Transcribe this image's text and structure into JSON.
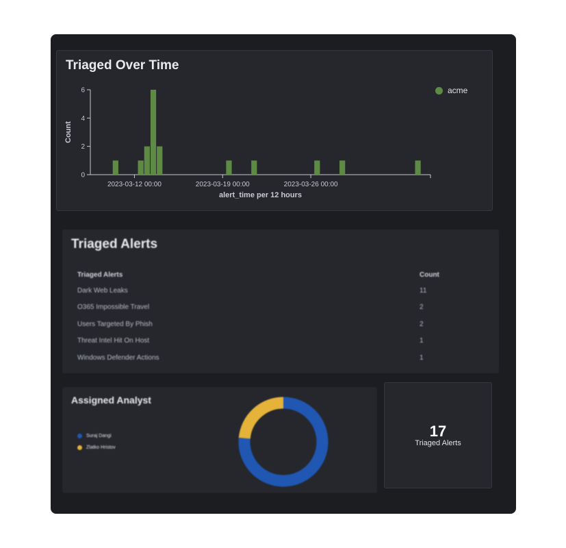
{
  "panels": {
    "time": {
      "title": "Triaged Over Time",
      "legend": [
        {
          "label": "acme",
          "color": "#5f8a45"
        }
      ]
    },
    "alerts": {
      "title": "Triaged Alerts",
      "columns": [
        "Triaged Alerts",
        "Count"
      ],
      "rows": [
        {
          "name": "Dark Web Leaks",
          "count": "11"
        },
        {
          "name": "O365 Impossible Travel",
          "count": "2"
        },
        {
          "name": "Users Targeted By Phish",
          "count": "2"
        },
        {
          "name": "Threat Intel Hit On Host",
          "count": "1"
        },
        {
          "name": "Windows Defender Actions",
          "count": "1"
        }
      ]
    },
    "analyst": {
      "title": "Assigned Analyst",
      "legend": [
        {
          "label": "Suraj Dangi",
          "color": "#1f57b3"
        },
        {
          "label": "Zlatko Hristov",
          "color": "#e5b23a"
        }
      ]
    },
    "metric": {
      "value": "17",
      "label": "Triaged Alerts"
    }
  },
  "chart_data": [
    {
      "type": "bar",
      "title": "Triaged Over Time",
      "xlabel": "alert_time per 12 hours",
      "ylabel": "Count",
      "ylim": [
        0,
        6
      ],
      "yticks": [
        0,
        2,
        4,
        6
      ],
      "xlim": [
        "2023-03-08 12:00",
        "2023-04-04 12:00"
      ],
      "xticks": [
        {
          "value": "2023-03-12 00:00",
          "label": "2023-03-12 00:00"
        },
        {
          "value": "2023-03-19 00:00",
          "label": "2023-03-19 00:00"
        },
        {
          "value": "2023-03-26 00:00",
          "label": "2023-03-26 00:00"
        }
      ],
      "bin_hours": 12,
      "series": [
        {
          "name": "acme",
          "color": "#5f8a45",
          "points": [
            {
              "x": "2023-03-10 12:00",
              "y": 1
            },
            {
              "x": "2023-03-12 12:00",
              "y": 1
            },
            {
              "x": "2023-03-13 00:00",
              "y": 2
            },
            {
              "x": "2023-03-13 12:00",
              "y": 6
            },
            {
              "x": "2023-03-14 00:00",
              "y": 2
            },
            {
              "x": "2023-03-19 12:00",
              "y": 1
            },
            {
              "x": "2023-03-21 12:00",
              "y": 1
            },
            {
              "x": "2023-03-26 12:00",
              "y": 1
            },
            {
              "x": "2023-03-28 12:00",
              "y": 1
            },
            {
              "x": "2023-04-03 12:00",
              "y": 1
            }
          ]
        }
      ],
      "legend_position": "top-right",
      "grid": false
    },
    {
      "type": "pie",
      "title": "Assigned Analyst",
      "donut": true,
      "slices": [
        {
          "label": "Suraj Dangi",
          "value": 13,
          "color": "#1f57b3"
        },
        {
          "label": "Zlatko Hristov",
          "value": 4,
          "color": "#e5b23a"
        }
      ],
      "legend_position": "left"
    }
  ]
}
